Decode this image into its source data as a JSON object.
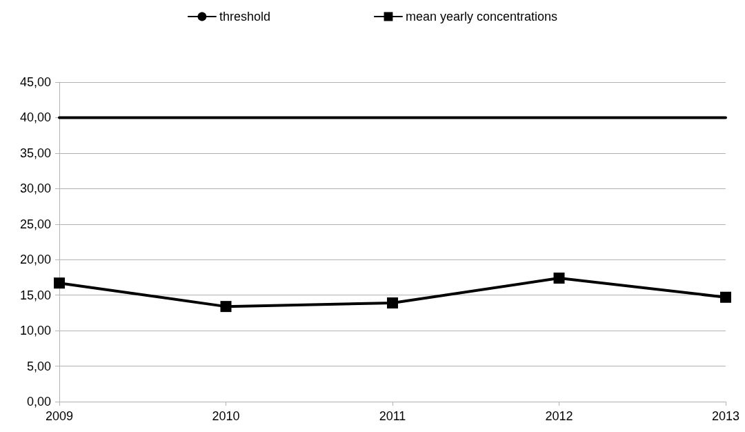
{
  "chart_data": {
    "type": "line",
    "categories": [
      "2009",
      "2010",
      "2011",
      "2012",
      "2013"
    ],
    "series": [
      {
        "name": "threshold",
        "color": "#000000",
        "marker": "none",
        "values": [
          40,
          40,
          40,
          40,
          40
        ]
      },
      {
        "name": "mean yearly concentrations",
        "color": "#000000",
        "marker": "square",
        "values": [
          16.7,
          13.4,
          13.9,
          17.4,
          14.7
        ]
      }
    ],
    "ylim": [
      0,
      45
    ],
    "yticks": [
      {
        "value": 0,
        "label": "0,00"
      },
      {
        "value": 5,
        "label": "5,00"
      },
      {
        "value": 10,
        "label": "10,00"
      },
      {
        "value": 15,
        "label": "15,00"
      },
      {
        "value": 20,
        "label": "20,00"
      },
      {
        "value": 25,
        "label": "25,00"
      },
      {
        "value": 30,
        "label": "30,00"
      },
      {
        "value": 35,
        "label": "35,00"
      },
      {
        "value": 40,
        "label": "40,00"
      },
      {
        "value": 45,
        "label": "45,00"
      }
    ],
    "grid": "y",
    "legend": "top",
    "line_style": "solid"
  }
}
